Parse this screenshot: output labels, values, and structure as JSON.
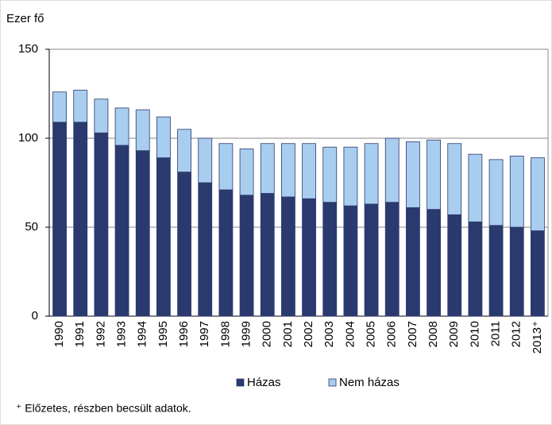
{
  "chart_data": {
    "type": "stacked_bar",
    "y_axis_label": "Ezer fő",
    "categories": [
      "1990",
      "1991",
      "1992",
      "1993",
      "1994",
      "1995",
      "1996",
      "1997",
      "1998",
      "1999",
      "2000",
      "2001",
      "2002",
      "2003",
      "2004",
      "2005",
      "2006",
      "2007",
      "2008",
      "2009",
      "2010",
      "2011",
      "2012",
      "2013⁺"
    ],
    "series": [
      {
        "name": "Házas",
        "color": "#2b3a6e",
        "values": [
          109,
          109,
          103,
          96,
          93,
          89,
          81,
          75,
          71,
          68,
          69,
          67,
          66,
          64,
          62,
          63,
          64,
          61,
          60,
          57,
          53,
          51,
          50,
          48
        ]
      },
      {
        "name": "Nem házas",
        "color": "#a9cdee",
        "values": [
          17,
          18,
          19,
          21,
          23,
          23,
          24,
          25,
          26,
          26,
          28,
          30,
          31,
          31,
          33,
          34,
          36,
          37,
          39,
          40,
          38,
          37,
          40,
          41
        ]
      }
    ],
    "ylim": [
      0,
      150
    ],
    "yticks": [
      0,
      50,
      100,
      150
    ],
    "grid": true,
    "footnote": "⁺ Előzetes, részben becsült adatok."
  }
}
